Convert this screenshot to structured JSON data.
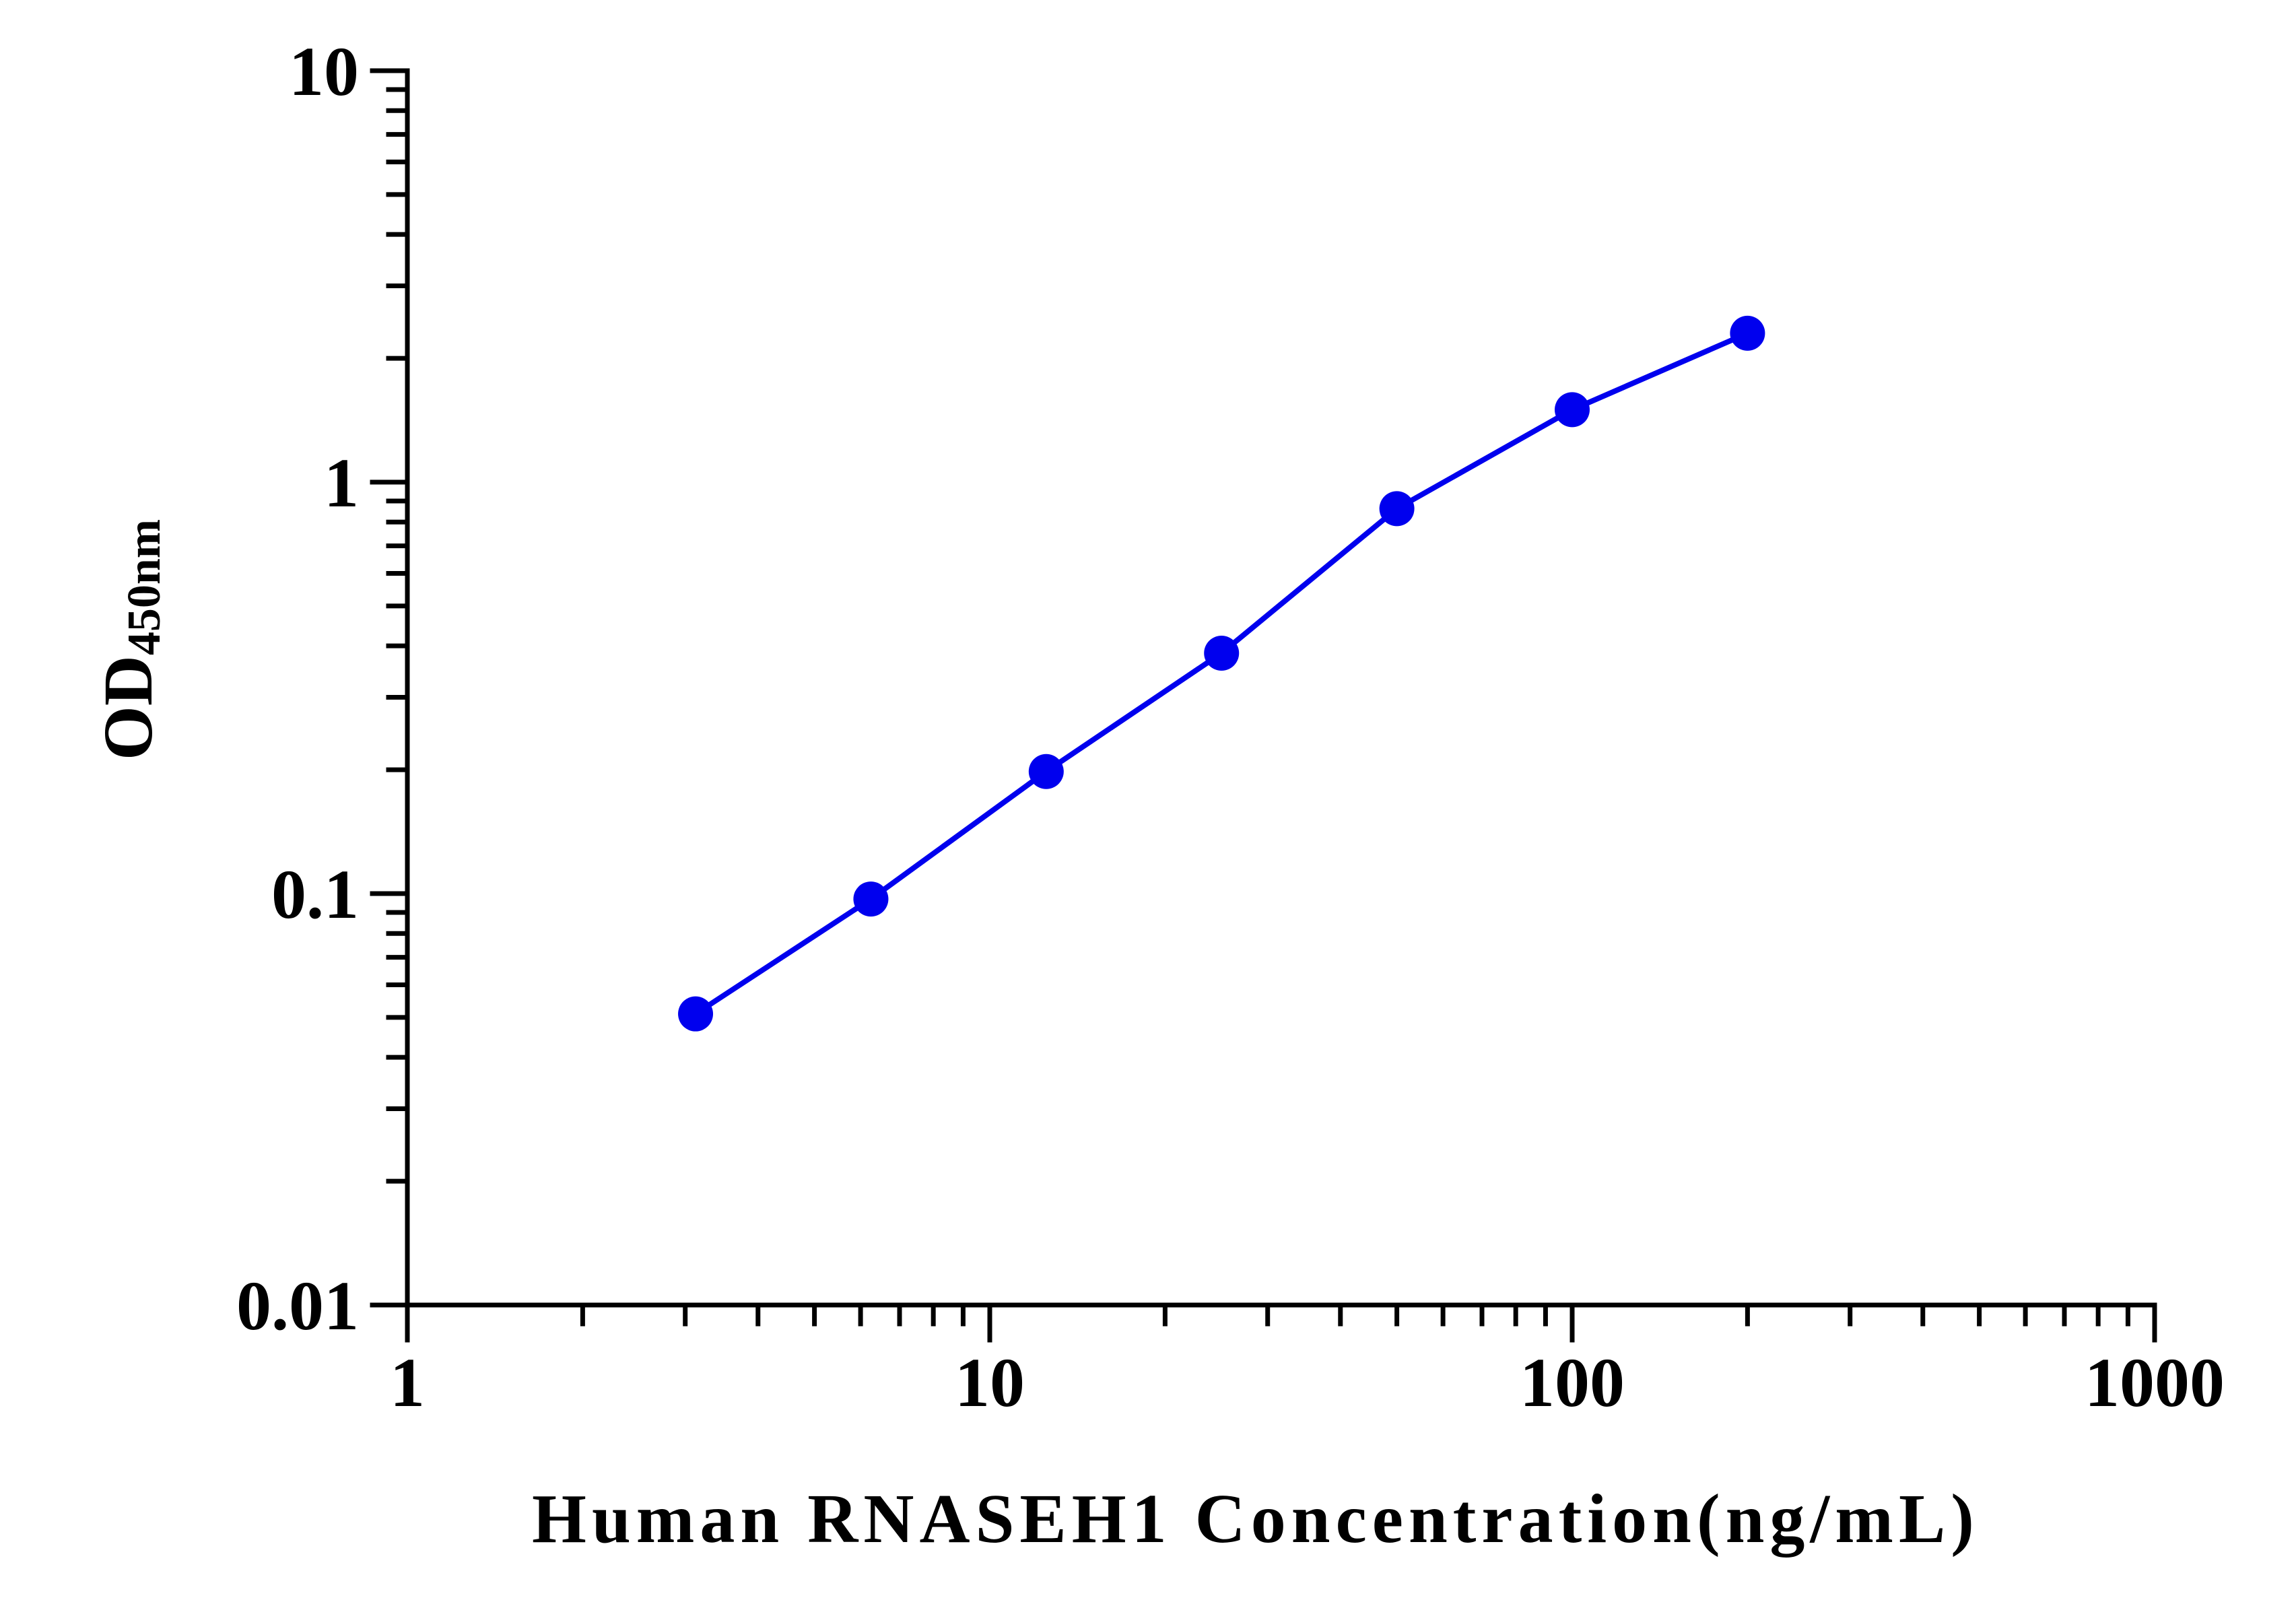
{
  "chart_data": {
    "type": "line",
    "x_scale": "log",
    "y_scale": "log",
    "xlim": [
      1,
      1000
    ],
    "ylim": [
      0.01,
      10
    ],
    "x_ticks": [
      1,
      10,
      100,
      1000
    ],
    "x_tick_labels": [
      "1",
      "10",
      "100",
      "1000"
    ],
    "y_ticks": [
      0.01,
      0.1,
      1,
      10
    ],
    "y_tick_labels": [
      "0.01",
      "0.1",
      "1",
      "10"
    ],
    "xlabel": "Human RNASEH1 Concentration(ng/mL)",
    "ylabel_main": "OD",
    "ylabel_sub": "450nm",
    "grid": false,
    "legend": "none",
    "series": [
      {
        "color": "#0000ee",
        "marker": "circle",
        "x": [
          3.125,
          6.25,
          12.5,
          25,
          50,
          100,
          200
        ],
        "y": [
          0.051,
          0.097,
          0.198,
          0.384,
          0.862,
          1.5,
          2.301
        ]
      }
    ]
  }
}
